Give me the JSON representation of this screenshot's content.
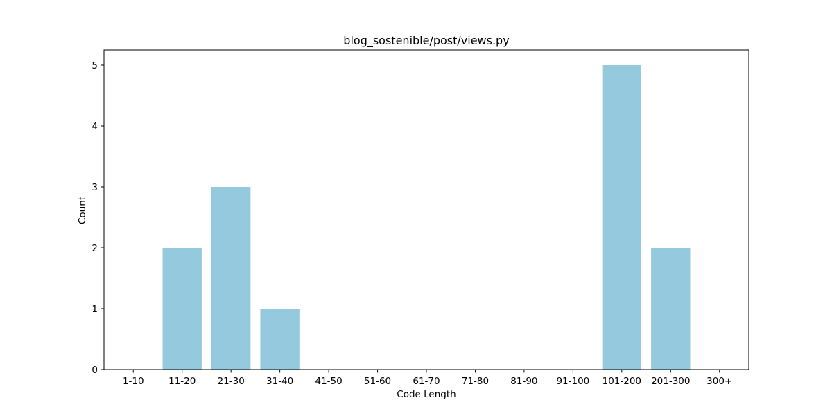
{
  "chart_data": {
    "type": "bar",
    "title": "blog_sostenible/post/views.py",
    "xlabel": "Code Length",
    "ylabel": "Count",
    "categories": [
      "1-10",
      "11-20",
      "21-30",
      "31-40",
      "41-50",
      "51-60",
      "61-70",
      "71-80",
      "81-90",
      "91-100",
      "101-200",
      "201-300",
      "300+"
    ],
    "values": [
      0,
      2,
      3,
      1,
      0,
      0,
      0,
      0,
      0,
      0,
      5,
      2,
      0
    ],
    "ylim": [
      0,
      5.25
    ],
    "yticks": [
      0,
      1,
      2,
      3,
      4,
      5
    ],
    "grid": false,
    "bar_color": "#95c9dd"
  }
}
